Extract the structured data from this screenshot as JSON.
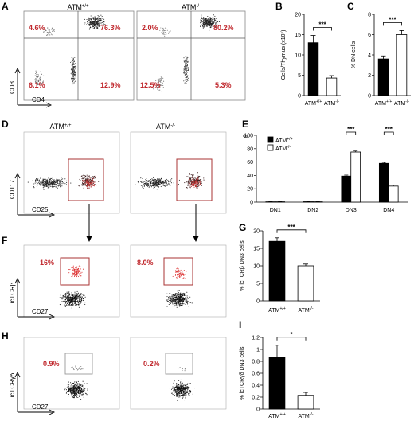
{
  "panels": {
    "A": {
      "letter": "A",
      "headers": [
        "ATM",
        "ATM"
      ],
      "sups": [
        "+/+",
        "-/-"
      ],
      "x_axis": "CD4",
      "y_axis": "CD8",
      "quadrants": [
        [
          "4.6%",
          "76.3%",
          "6.1%",
          "12.9%"
        ],
        [
          "2.0%",
          "80.2%",
          "12.5%",
          "5.3%"
        ]
      ]
    },
    "D": {
      "letter": "D",
      "headers": [
        "ATM",
        "ATM"
      ],
      "sups": [
        "+/+",
        "-/-"
      ],
      "x_axis": "CD25",
      "y_axis": "CD117"
    },
    "F": {
      "letter": "F",
      "x_axis": "CD27",
      "y_axis": "icTCRβ",
      "gates": [
        "16%",
        "8.0%"
      ]
    },
    "H": {
      "letter": "H",
      "x_axis": "CD27",
      "y_axis": "icTCRγδ",
      "gates": [
        "0.9%",
        "0.2%"
      ]
    }
  },
  "chart_data": [
    {
      "panel": "B",
      "type": "bar",
      "categories": [
        "ATM+/+",
        "ATM-/-"
      ],
      "cat_base": [
        "ATM",
        "ATM"
      ],
      "cat_sup": [
        "+/+",
        "-/-"
      ],
      "values": [
        13,
        4.3
      ],
      "errors": [
        1.8,
        0.6
      ],
      "ylim": [
        0,
        20
      ],
      "ticks": [
        0,
        5,
        10,
        15,
        20
      ],
      "ylabel": "Cells/Thymus (x10⁷)",
      "significance": "***",
      "colors": [
        "#000000",
        "#ffffff"
      ]
    },
    {
      "panel": "C",
      "type": "bar",
      "categories": [
        "ATM+/+",
        "ATM-/-"
      ],
      "cat_base": [
        "ATM",
        "ATM"
      ],
      "cat_sup": [
        "+/+",
        "-/-"
      ],
      "values": [
        3.6,
        6.0
      ],
      "errors": [
        0.3,
        0.4
      ],
      "ylim": [
        0,
        8
      ],
      "ticks": [
        0,
        2,
        4,
        6,
        8
      ],
      "ylabel": "% DN cells",
      "significance": "***",
      "colors": [
        "#000000",
        "#ffffff"
      ]
    },
    {
      "panel": "E",
      "type": "bar",
      "categories": [
        "DN1",
        "DN2",
        "DN3",
        "DN4"
      ],
      "series": [
        {
          "name": "ATM+/+",
          "base": "ATM",
          "sup": "+/+",
          "values": [
            0.5,
            0.6,
            39,
            58
          ],
          "errors": [
            0.2,
            0.2,
            1.5,
            1.5
          ],
          "color": "#000000"
        },
        {
          "name": "ATM-/-",
          "base": "ATM",
          "sup": "-/-",
          "values": [
            0.5,
            0.5,
            75,
            24
          ],
          "errors": [
            0.2,
            0.2,
            1.5,
            1.5
          ],
          "color": "#ffffff"
        }
      ],
      "ylim": [
        0,
        100
      ],
      "ticks": [
        0,
        20,
        40,
        60,
        80,
        100
      ],
      "ylabel": "%",
      "significance": [
        "***",
        "***"
      ],
      "legend": "top-left"
    },
    {
      "panel": "G",
      "type": "bar",
      "categories": [
        "ATM+/+",
        "ATM-/-"
      ],
      "cat_base": [
        "ATM",
        "ATM"
      ],
      "cat_sup": [
        "+/+",
        "-/-"
      ],
      "values": [
        17,
        10
      ],
      "errors": [
        1.0,
        0.5
      ],
      "ylim": [
        0,
        20
      ],
      "ticks": [
        0,
        5,
        10,
        15,
        20
      ],
      "ylabel": "% icTCRβ DN3 cells",
      "significance": "***",
      "colors": [
        "#000000",
        "#ffffff"
      ]
    },
    {
      "panel": "I",
      "type": "bar",
      "categories": [
        "ATM+/+",
        "ATM-/-"
      ],
      "cat_base": [
        "ATM",
        "ATM"
      ],
      "cat_sup": [
        "+/+",
        "-/-"
      ],
      "values": [
        0.87,
        0.23
      ],
      "errors": [
        0.2,
        0.05
      ],
      "ylim": [
        0,
        1.2
      ],
      "ticks": [
        0,
        0.2,
        0.4,
        0.6,
        0.8,
        1,
        1.2
      ],
      "ylabel": "% icTCRγδ DN3 cells",
      "significance": "*",
      "colors": [
        "#000000",
        "#ffffff"
      ]
    }
  ]
}
